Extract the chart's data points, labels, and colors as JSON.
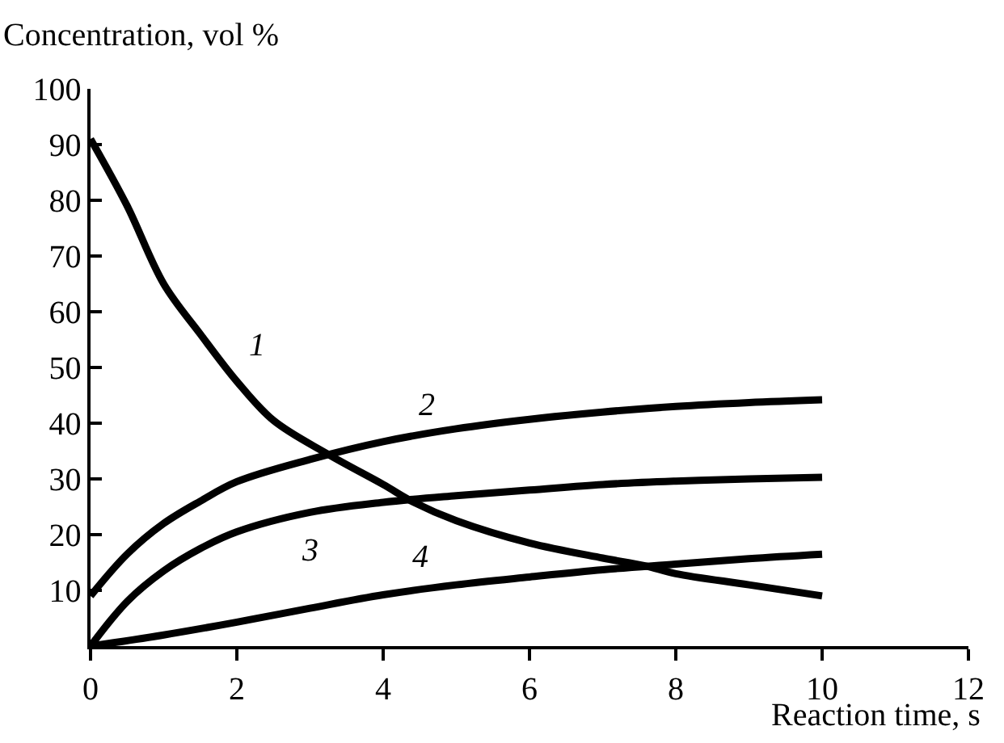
{
  "chart_data": {
    "type": "line",
    "xlabel": "Reaction time, s",
    "ylabel": "Concentration, vol %",
    "xlim": [
      0,
      12
    ],
    "xticks": [
      0,
      2,
      4,
      6,
      8,
      10,
      12
    ],
    "ylim": [
      0,
      100
    ],
    "yticks": [
      10,
      20,
      30,
      40,
      50,
      60,
      70,
      80,
      90,
      100
    ],
    "legend": false,
    "marker": "none",
    "line_style": "solid",
    "series": [
      {
        "name": "1",
        "color": "#000000",
        "x": [
          0,
          0.5,
          1,
          1.5,
          2,
          2.5,
          3.25,
          4,
          4.42,
          5,
          6,
          7,
          7.58,
          8,
          9,
          10
        ],
        "values": [
          91,
          79,
          65,
          56,
          47.5,
          40.5,
          34.4,
          29,
          25.8,
          22.5,
          18.5,
          15.8,
          14.4,
          13,
          11,
          9
        ]
      },
      {
        "name": "2",
        "color": "#000000",
        "x": [
          0,
          0.5,
          1,
          1.5,
          2,
          3,
          4,
          5,
          6,
          7,
          8,
          9,
          10
        ],
        "values": [
          9,
          16.5,
          22,
          26,
          29.5,
          33.5,
          36.7,
          39,
          40.7,
          42,
          43,
          43.7,
          44.2
        ]
      },
      {
        "name": "3",
        "color": "#000000",
        "x": [
          0,
          0.5,
          1,
          1.5,
          2,
          3,
          4,
          5,
          6,
          7,
          8,
          9,
          10
        ],
        "values": [
          0,
          8,
          13.5,
          17.5,
          20.5,
          24,
          25.8,
          27,
          28,
          29,
          29.6,
          30,
          30.3
        ]
      },
      {
        "name": "4",
        "color": "#000000",
        "x": [
          0,
          1,
          2,
          3,
          4,
          5,
          6,
          7,
          8,
          9,
          10
        ],
        "values": [
          0,
          2,
          4.3,
          6.8,
          9.2,
          11,
          12.4,
          13.7,
          14.7,
          15.7,
          16.5
        ]
      }
    ]
  }
}
